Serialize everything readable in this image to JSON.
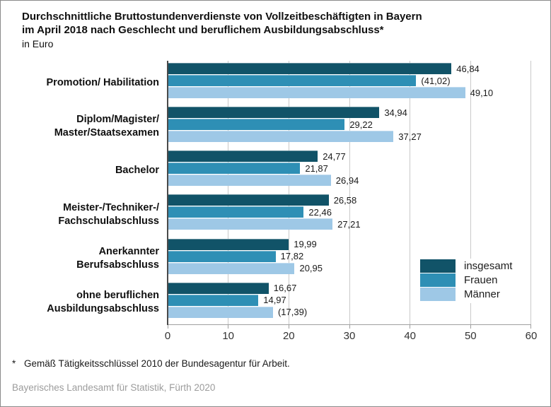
{
  "title": {
    "line1": "Durchschnittliche Bruttostundenverdienste von Vollzeitbeschäftigten in Bayern",
    "line2": "im April 2018 nach Geschlecht und beruflichem Ausbildungsabschluss*",
    "unit": "in Euro"
  },
  "chart_data": {
    "type": "bar",
    "orientation": "horizontal",
    "categories": [
      {
        "lines": [
          "Promotion/ Habilitation"
        ]
      },
      {
        "lines": [
          "Diplom/Magister/",
          "Master/Staatsexamen"
        ]
      },
      {
        "lines": [
          "Bachelor"
        ]
      },
      {
        "lines": [
          "Meister-/Techniker-/",
          "Fachschulabschluss"
        ]
      },
      {
        "lines": [
          "Anerkannter",
          "Berufsabschluss"
        ]
      },
      {
        "lines": [
          "ohne beruflichen",
          "Ausbildungsabschluss"
        ]
      }
    ],
    "series": [
      {
        "name": "insgesamt",
        "color": "#115368",
        "values": [
          46.84,
          34.94,
          24.77,
          26.58,
          19.99,
          16.67
        ],
        "labels": [
          "46,84",
          "34,94",
          "24,77",
          "26,58",
          "19,99",
          "16,67"
        ]
      },
      {
        "name": "Frauen",
        "color": "#2E8FB5",
        "values": [
          41.02,
          29.22,
          21.87,
          22.46,
          17.82,
          14.97
        ],
        "labels": [
          "(41,02)",
          "29,22",
          "21,87",
          "22,46",
          "17,82",
          "14,97"
        ]
      },
      {
        "name": "Männer",
        "color": "#9EC8E6",
        "values": [
          49.1,
          37.27,
          26.94,
          27.21,
          20.95,
          17.39
        ],
        "labels": [
          "49,10",
          "37,27",
          "26,94",
          "27,21",
          "20,95",
          "(17,39)"
        ]
      }
    ],
    "xlim": [
      0,
      60
    ],
    "x_ticks": [
      "0",
      "10",
      "20",
      "30",
      "40",
      "50",
      "60"
    ],
    "grid": true,
    "legend_position": "inside-bottom-right"
  },
  "footnote": {
    "marker": "*",
    "text": "Gemäß Tätigkeitsschlüssel 2010 der Bundesagentur für Arbeit."
  },
  "source": "Bayerisches Landesamt für Statistik, Fürth 2020"
}
